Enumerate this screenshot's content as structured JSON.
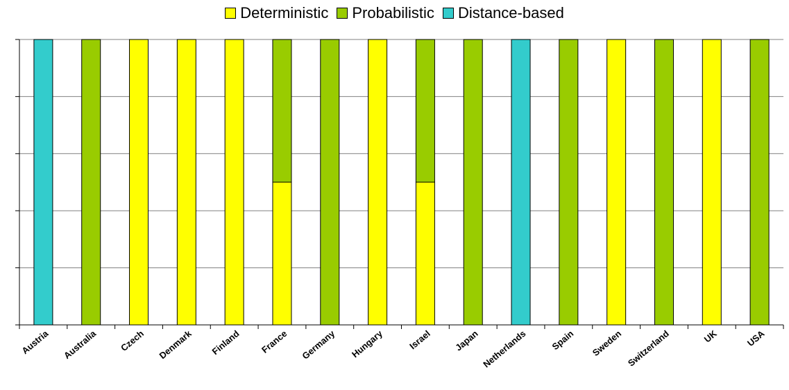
{
  "chart_data": {
    "type": "bar",
    "stacked": true,
    "categories": [
      "Austria",
      "Australia",
      "Czech",
      "Denmark",
      "Finland",
      "France",
      "Germany",
      "Hungary",
      "Israel",
      "Japan",
      "Netherlands",
      "Spain",
      "Sweden",
      "Switzerland",
      "UK",
      "USA"
    ],
    "series": [
      {
        "name": "Deterministic",
        "color": "#ffff00",
        "values": [
          0,
          0,
          1,
          1,
          1,
          0.5,
          0,
          1,
          0.5,
          0,
          0,
          0,
          1,
          0,
          1,
          0
        ]
      },
      {
        "name": "Probabilistic",
        "color": "#99cc00",
        "values": [
          0,
          1,
          0,
          0,
          0,
          0.5,
          1,
          0,
          0.5,
          1,
          0,
          1,
          0,
          1,
          0,
          1
        ]
      },
      {
        "name": "Distance-based",
        "color": "#33cccc",
        "values": [
          1,
          0,
          0,
          0,
          0,
          0,
          0,
          0,
          0,
          0,
          1,
          0,
          0,
          0,
          0,
          0
        ]
      }
    ],
    "ylim": [
      0,
      1
    ],
    "yticks": [
      0,
      0.2,
      0.4,
      0.6,
      0.8,
      1
    ],
    "ytick_labels_shown": false,
    "grid": true,
    "legend_position": "top-center"
  }
}
